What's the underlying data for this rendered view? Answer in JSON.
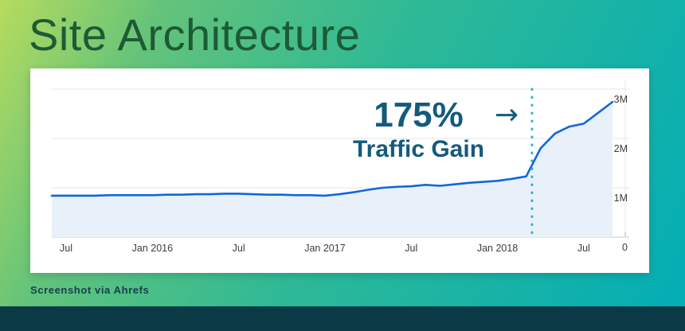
{
  "header": {
    "title": "Site Architecture"
  },
  "footer": {
    "caption": "Screenshot via Ahrefs"
  },
  "annotation": {
    "percent": "175%",
    "arrow": "→",
    "label": "Traffic Gain"
  },
  "chart_data": {
    "type": "area",
    "title": "",
    "xlabel": "",
    "ylabel": "",
    "x_start": "2015-06",
    "x_interval": "month",
    "x_ticks": [
      {
        "index": 1,
        "label": "Jul"
      },
      {
        "index": 7,
        "label": "Jan 2016"
      },
      {
        "index": 13,
        "label": "Jul"
      },
      {
        "index": 19,
        "label": "Jan 2017"
      },
      {
        "index": 25,
        "label": "Jul"
      },
      {
        "index": 31,
        "label": "Jan 2018"
      },
      {
        "index": 37,
        "label": "Jul"
      }
    ],
    "y_ticks": [
      {
        "value": 3,
        "label": "3M"
      },
      {
        "value": 2,
        "label": "2M"
      },
      {
        "value": 1,
        "label": "1M"
      },
      {
        "value": 0,
        "label": "0"
      }
    ],
    "ylim": [
      0,
      3.2
    ],
    "grid": true,
    "legend": false,
    "y_axis_side": "right",
    "series": [
      {
        "name": "traffic",
        "unit": "millions",
        "values": [
          0.84,
          0.84,
          0.84,
          0.84,
          0.85,
          0.85,
          0.85,
          0.85,
          0.86,
          0.86,
          0.87,
          0.87,
          0.88,
          0.88,
          0.87,
          0.86,
          0.86,
          0.85,
          0.85,
          0.84,
          0.87,
          0.91,
          0.96,
          1.0,
          1.02,
          1.03,
          1.06,
          1.04,
          1.07,
          1.1,
          1.12,
          1.14,
          1.18,
          1.23,
          1.8,
          2.1,
          2.24,
          2.3,
          2.52,
          2.74
        ]
      }
    ],
    "highlight": {
      "month_index": 33.4,
      "style": "dotted-vertical-line"
    }
  },
  "colors": {
    "titleGreen": "#1d5a35",
    "annotation": "#155a7c",
    "captionDark": "#16404d",
    "barDark": "#0b3a46",
    "cardBg": "#ffffff",
    "line": "#1266dd",
    "fill": "#e8f1fa",
    "dotted": "#2db3c6",
    "grid": "#ededed",
    "axis": "#dcdcdc",
    "tick": "#b0b0b0",
    "label": "#3d3d3d",
    "bg1": "#b7db5e",
    "bg2": "#63c37a",
    "bg3": "#2eb996",
    "bg4": "#02adb6"
  }
}
